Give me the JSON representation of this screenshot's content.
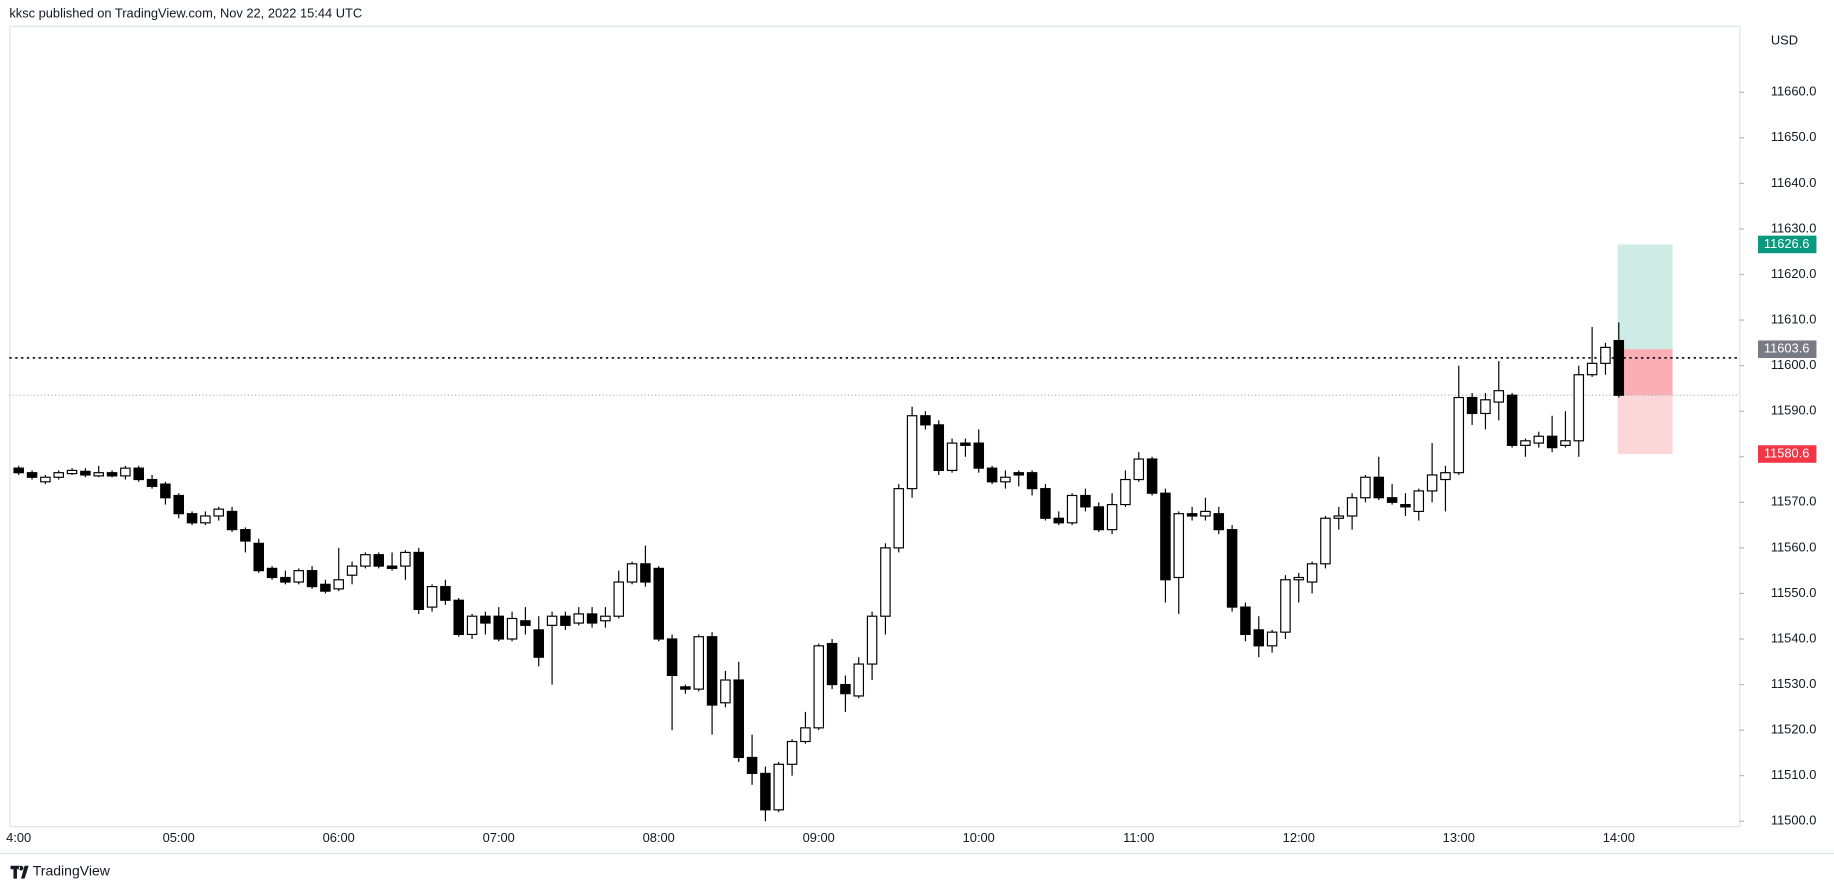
{
  "chart_data": {
    "type": "candlestick",
    "header": "kksc published on TradingView.com, Nov 22, 2022 15:44 UTC",
    "currency": "USD",
    "footer": "TradingView",
    "up_color": "#ffffff",
    "down_color": "#000000",
    "border_color": "#000000",
    "categories": [
      "4:00",
      null,
      null,
      null,
      null,
      null,
      null,
      null,
      null,
      null,
      null,
      null,
      "05:00",
      null,
      null,
      null,
      null,
      null,
      null,
      null,
      null,
      null,
      null,
      null,
      "06:00",
      null,
      null,
      null,
      null,
      null,
      null,
      null,
      null,
      null,
      null,
      null,
      "07:00",
      null,
      null,
      null,
      null,
      null,
      null,
      null,
      null,
      null,
      null,
      null,
      "08:00",
      null,
      null,
      null,
      null,
      null,
      null,
      null,
      null,
      null,
      null,
      null,
      "09:00",
      null,
      null,
      null,
      null,
      null,
      null,
      null,
      null,
      null,
      null,
      null,
      "10:00",
      null,
      null,
      null,
      null,
      null,
      null,
      null,
      null,
      null,
      null,
      null,
      "11:00",
      null,
      null,
      null,
      null,
      null,
      null,
      null,
      null,
      null,
      null,
      null,
      "12:00",
      null,
      null,
      null,
      null,
      null,
      null,
      null,
      null,
      null,
      null,
      null,
      "13:00",
      null,
      null,
      null,
      null,
      null,
      null,
      null,
      null,
      null,
      null,
      null,
      "14:00"
    ],
    "open": [
      11577.5,
      11576.5,
      11574.5,
      11575.5,
      11576.3,
      11576.8,
      11575.8,
      11576.5,
      11575.8,
      11577.5,
      11575,
      11574,
      11571.5,
      11567.5,
      11565.5,
      11567,
      11568,
      11564,
      11561,
      11555.5,
      11553.5,
      11552.5,
      11555,
      11552,
      11551,
      11554,
      11556,
      11558.5,
      11556,
      11556,
      11559,
      11547,
      11551.5,
      11548.5,
      11541,
      11545,
      11545,
      11540,
      11544,
      11542,
      11543,
      11545,
      11543.5,
      11545.5,
      11544,
      11545,
      11552.5,
      11556.5,
      11555.5,
      11540,
      11529.5,
      11529,
      11540.5,
      11526,
      11531,
      11514,
      11510.5,
      11502.5,
      11512.5,
      11517.5,
      11520.5,
      11539,
      11530,
      11527.5,
      11534.5,
      11545,
      11560,
      11573,
      11589,
      11587,
      11577,
      11583,
      11583,
      11577.5,
      11574.5,
      11576.5,
      11576.5,
      11573,
      11566.5,
      11565.5,
      11571.5,
      11569,
      11564,
      11569.5,
      11575,
      11579.5,
      11572,
      11553.5,
      11567.5,
      11567,
      11567.5,
      11564,
      11547,
      11542,
      11538.5,
      11541.5,
      11553,
      11552.5,
      11556.5,
      11566.5,
      11567,
      11571,
      11575.5,
      11571,
      11569.5,
      11568,
      11572.5,
      11575,
      11576.5,
      11593,
      11589.5,
      11592,
      11593.5,
      11582.5,
      11583,
      11584.5,
      11582.5,
      11583.5,
      11598,
      11600.5,
      11605.5
    ],
    "high": [
      11578,
      11577,
      11576,
      11577,
      11577.5,
      11577.5,
      11578,
      11577,
      11578,
      11578,
      11576,
      11574.5,
      11572,
      11568,
      11568,
      11569,
      11569,
      11564.5,
      11562,
      11556,
      11555,
      11555.5,
      11556,
      11553,
      11560,
      11557,
      11559,
      11559,
      11559,
      11559.5,
      11560,
      11552,
      11553,
      11549,
      11545.5,
      11546,
      11547,
      11546,
      11547,
      11545,
      11546,
      11546,
      11547,
      11547,
      11547,
      11555,
      11557,
      11560.5,
      11556,
      11541,
      11530,
      11541,
      11541.5,
      11533,
      11535,
      11519,
      11512,
      11513,
      11518,
      11524,
      11539,
      11540,
      11532,
      11536,
      11546,
      11561,
      11574,
      11591,
      11590,
      11588,
      11584,
      11584,
      11586,
      11578,
      11577,
      11577,
      11577,
      11574,
      11568,
      11572,
      11573,
      11570,
      11572,
      11577,
      11581,
      11580,
      11573,
      11568,
      11569,
      11571,
      11569,
      11565,
      11548,
      11545,
      11542,
      11554,
      11554.5,
      11557,
      11567,
      11569,
      11572,
      11576,
      11580,
      11574,
      11572,
      11573,
      11583,
      11578,
      11600,
      11594,
      11594,
      11601,
      11594,
      11584,
      11585.5,
      11589,
      11590,
      11600,
      11608.5,
      11605,
      11609.5
    ],
    "low": [
      11576,
      11575,
      11574,
      11575,
      11576,
      11575.5,
      11575.5,
      11575.5,
      11575,
      11574.5,
      11573,
      11569.5,
      11566.5,
      11565,
      11565,
      11566,
      11563.5,
      11559,
      11554.5,
      11553,
      11552,
      11552,
      11551,
      11550,
      11550.5,
      11552,
      11555.5,
      11555.5,
      11555,
      11553,
      11545.5,
      11546,
      11547.5,
      11540.5,
      11540,
      11541,
      11539.5,
      11539.5,
      11541,
      11534,
      11530,
      11542,
      11543,
      11542.5,
      11542.5,
      11544.5,
      11552,
      11551.5,
      11539.5,
      11520,
      11528,
      11528.5,
      11519,
      11525,
      11513,
      11508,
      11500,
      11502,
      11510,
      11517,
      11520,
      11529,
      11524,
      11527,
      11531,
      11541,
      11559,
      11571,
      11586,
      11576,
      11576.5,
      11580,
      11576.5,
      11574,
      11573,
      11573.5,
      11571.5,
      11566,
      11565,
      11565,
      11568,
      11563.5,
      11563,
      11569,
      11574.5,
      11571.5,
      11548,
      11545.5,
      11566,
      11566,
      11563,
      11546,
      11539.5,
      11536,
      11537,
      11540,
      11548,
      11550,
      11555.5,
      11564,
      11564,
      11570,
      11570.5,
      11569.5,
      11567,
      11566,
      11570,
      11568,
      11576,
      11587,
      11586,
      11588,
      11582,
      11580,
      11582,
      11581,
      11582,
      11580,
      11597.5,
      11598,
      11593
    ],
    "close": [
      11576.5,
      11575.5,
      11575.5,
      11576.5,
      11577,
      11576,
      11576.5,
      11575.8,
      11577.5,
      11575,
      11573.5,
      11571,
      11567.5,
      11565.5,
      11567,
      11568.5,
      11564,
      11561.5,
      11555,
      11553.5,
      11552.5,
      11555,
      11551.5,
      11550.5,
      11553,
      11556,
      11558.5,
      11556,
      11555.5,
      11559,
      11546.5,
      11551.5,
      11548.5,
      11541,
      11545,
      11543.5,
      11540,
      11544.5,
      11543,
      11536,
      11545,
      11543,
      11545.5,
      11543.5,
      11545,
      11552.5,
      11556.5,
      11552.5,
      11540,
      11532,
      11529,
      11540.5,
      11525.5,
      11531,
      11514,
      11510.5,
      11502.5,
      11512.5,
      11517.5,
      11520.5,
      11538.5,
      11530,
      11528,
      11534.5,
      11545,
      11560,
      11573,
      11589,
      11587,
      11577,
      11583,
      11582.5,
      11577.5,
      11574.5,
      11575.5,
      11576,
      11573,
      11566.5,
      11565.5,
      11571.5,
      11569,
      11564,
      11569.5,
      11575,
      11579.5,
      11572,
      11553,
      11567.5,
      11567,
      11568,
      11564,
      11547,
      11541,
      11538.5,
      11541.5,
      11553,
      11553.5,
      11556.5,
      11566.5,
      11567,
      11571,
      11575.5,
      11571,
      11570,
      11569,
      11572.5,
      11576,
      11576.5,
      11593,
      11589.5,
      11592.5,
      11594.5,
      11582.5,
      11583.5,
      11584.5,
      11582,
      11583.5,
      11598,
      11600.5,
      11604,
      11593.5
    ],
    "ylim": [
      11498.7,
      11674.6
    ],
    "yticks": [
      {
        "value": 11500,
        "label": "11500.0"
      },
      {
        "value": 11510,
        "label": "11510.0"
      },
      {
        "value": 11520,
        "label": "11520.0"
      },
      {
        "value": 11530,
        "label": "11530.0"
      },
      {
        "value": 11540,
        "label": "11540.0"
      },
      {
        "value": 11550,
        "label": "11550.0"
      },
      {
        "value": 11560,
        "label": "11560.0"
      },
      {
        "value": 11570,
        "label": "11570.0"
      },
      {
        "value": 11580,
        "label": "11580.0"
      },
      {
        "value": 11590,
        "label": "11590.0"
      },
      {
        "value": 11600,
        "label": "11600.0"
      },
      {
        "value": 11610,
        "label": "11610.0"
      },
      {
        "value": 11620,
        "label": "11620.0"
      },
      {
        "value": 11630,
        "label": "11630.0"
      },
      {
        "value": 11640,
        "label": "11640.0"
      },
      {
        "value": 11650,
        "label": "11650.0"
      },
      {
        "value": 11660,
        "label": "11660.0"
      }
    ],
    "horizontal_line": 11601.7,
    "position": {
      "target": 11626.6,
      "entry": 11603.6,
      "stop": 11580.6,
      "target_color": "#089981",
      "entry_color": "#787b86",
      "stop_color": "#f23645"
    }
  }
}
